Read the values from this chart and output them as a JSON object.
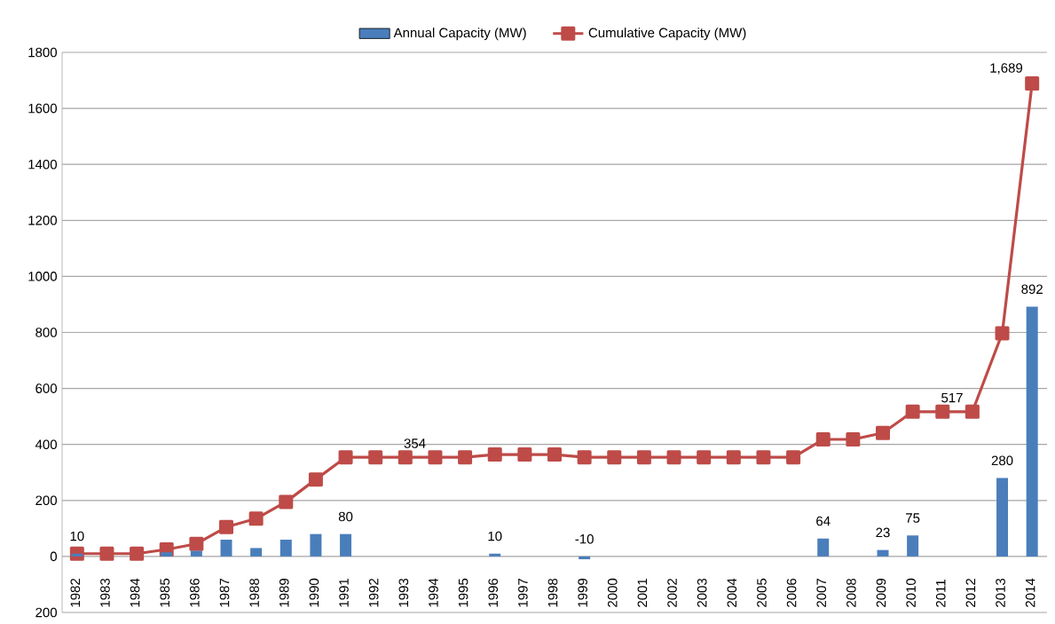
{
  "chart_data": {
    "type": "bar",
    "categories": [
      "1982",
      "1983",
      "1984",
      "1985",
      "1986",
      "1987",
      "1988",
      "1989",
      "1990",
      "1991",
      "1992",
      "1993",
      "1994",
      "1995",
      "1996",
      "1997",
      "1998",
      "1999",
      "2000",
      "2001",
      "2002",
      "2003",
      "2004",
      "2005",
      "2006",
      "2007",
      "2008",
      "2009",
      "2010",
      "2011",
      "2012",
      "2013",
      "2014"
    ],
    "series": [
      {
        "name": "Annual Capacity (MW)",
        "type": "bar",
        "color": "#4a7ebb",
        "values": [
          10,
          0,
          0,
          15,
          20,
          60,
          30,
          60,
          80,
          80,
          0,
          0,
          0,
          0,
          10,
          0,
          0,
          -10,
          0,
          0,
          0,
          0,
          0,
          0,
          0,
          64,
          0,
          23,
          75,
          0,
          0,
          280,
          892
        ],
        "value_labels": [
          "10",
          null,
          null,
          null,
          null,
          null,
          null,
          null,
          null,
          "80",
          null,
          null,
          null,
          null,
          "10",
          null,
          null,
          "-10",
          null,
          null,
          null,
          null,
          null,
          null,
          null,
          "64",
          null,
          "23",
          "75",
          null,
          null,
          "280",
          "892"
        ]
      },
      {
        "name": "Cumulative Capacity (MW)",
        "type": "line",
        "color": "#be4b48",
        "marker": "square",
        "line_style": "solid",
        "values": [
          10,
          10,
          10,
          25,
          45,
          105,
          135,
          195,
          275,
          354,
          354,
          354,
          354,
          354,
          364,
          364,
          364,
          354,
          354,
          354,
          354,
          354,
          354,
          354,
          354,
          418,
          418,
          441,
          517,
          517,
          517,
          797,
          1689
        ],
        "value_labels": [
          null,
          null,
          null,
          null,
          null,
          null,
          null,
          null,
          null,
          null,
          null,
          null,
          "354",
          null,
          null,
          null,
          null,
          null,
          null,
          null,
          null,
          null,
          null,
          null,
          null,
          null,
          null,
          null,
          null,
          null,
          "517",
          null,
          "1,689"
        ]
      }
    ],
    "ylim": [
      -200,
      1800
    ],
    "yticks": [
      {
        "value": -200,
        "label": "200"
      },
      0,
      200,
      400,
      600,
      800,
      1000,
      1200,
      1400,
      1600,
      1800
    ],
    "grid": "y",
    "legend": "top"
  }
}
